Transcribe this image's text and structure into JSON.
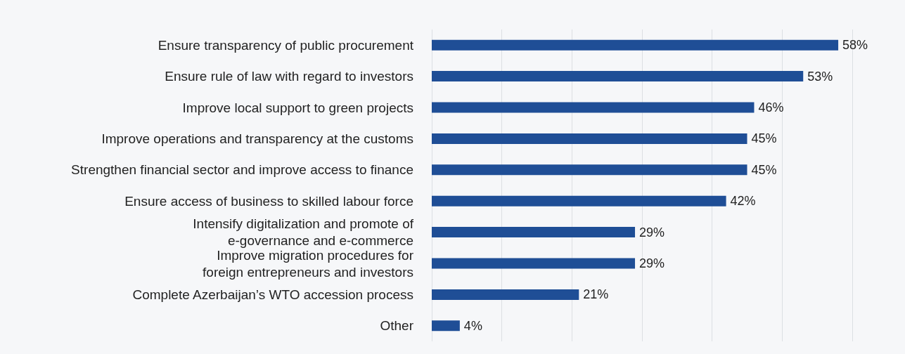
{
  "chart_data": {
    "type": "bar",
    "orientation": "horizontal",
    "categories": [
      "Ensure transparency of public procurement",
      "Ensure rule of law with regard to investors",
      "Improve local support to green projects",
      "Improve operations and transparency at the customs",
      "Strengthen financial sector and improve access to finance",
      "Ensure access of business to skilled labour force",
      "Intensify digitalization and promote of\ne-governance and e-commerce",
      "Improve migration procedures for\nforeign entrepreneurs and investors",
      "Complete Azerbaijan’s WTO accession process",
      "Other"
    ],
    "values": [
      58,
      53,
      46,
      45,
      45,
      42,
      29,
      29,
      21,
      4
    ],
    "value_labels": [
      "58%",
      "53%",
      "46%",
      "45%",
      "45%",
      "42%",
      "29%",
      "29%",
      "21%",
      "4%"
    ],
    "color": "#1f4e96",
    "xlim": [
      0,
      60
    ],
    "xticks": [
      {
        "value": 0,
        "label": null
      },
      {
        "value": 10,
        "label": null
      },
      {
        "value": 20,
        "label": null
      },
      {
        "value": 30,
        "label": null
      },
      {
        "value": 40,
        "label": null
      },
      {
        "value": 50,
        "label": null
      },
      {
        "value": 60,
        "label": null
      }
    ],
    "grid": "x",
    "tick_labels": "y"
  }
}
